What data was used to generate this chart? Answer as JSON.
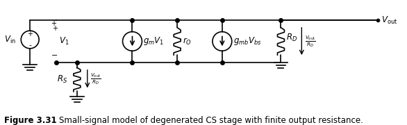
{
  "title": "Figure 3.31",
  "caption": "Small-signal model of degenerated CS stage with finite output resistance.",
  "fig_width": 5.86,
  "fig_height": 1.8,
  "dpi": 100,
  "bg_color": "#ffffff",
  "line_color": "#000000",
  "text_color": "#000000"
}
